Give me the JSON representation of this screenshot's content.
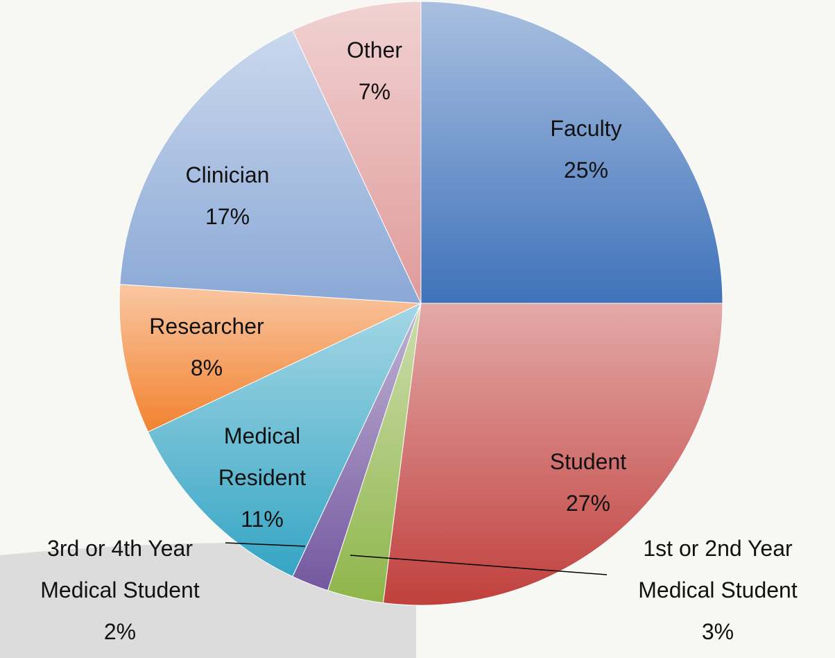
{
  "chart_data": {
    "type": "pie",
    "categories": [
      "Faculty",
      "Student",
      "1st or 2nd Year Medical Student",
      "3rd or 4th Year Medical Student",
      "Medical Resident",
      "Researcher",
      "Clinician",
      "Other"
    ],
    "values": [
      25,
      27,
      3,
      2,
      11,
      8,
      17,
      7
    ],
    "value_labels": [
      "25%",
      "27%",
      "3%",
      "2%",
      "11%",
      "8%",
      "17%",
      "7%"
    ],
    "colors": [
      "#3f72ba",
      "#c0403d",
      "#8fb54a",
      "#7458a0",
      "#35a5c4",
      "#f28230",
      "#8aa8d6",
      "#e09a9a"
    ]
  }
}
